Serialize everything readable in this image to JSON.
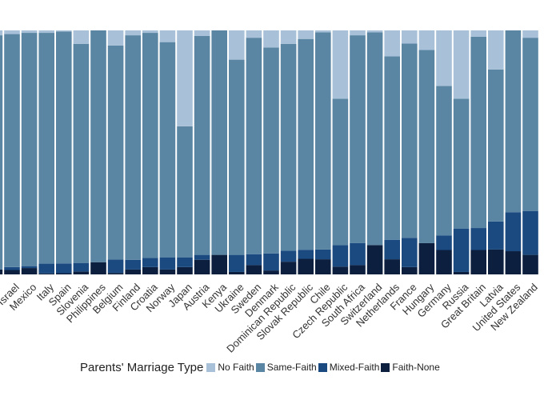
{
  "chart_data": {
    "type": "bar",
    "stacked": true,
    "normalized": true,
    "ylim": [
      0,
      1
    ],
    "grid": false,
    "categories": [
      "Israel",
      "Mexico",
      "Italy",
      "Spain",
      "Slovenia",
      "Philippines",
      "Belgium",
      "Finland",
      "Croatia",
      "Norway",
      "Japan",
      "Austria",
      "Kenya",
      "Ukraine",
      "Sweden",
      "Denmark",
      "Dominican Republic",
      "Slovak Republic",
      "Chile",
      "Czech Republic",
      "South Africa",
      "Switzerland",
      "Netherlands",
      "France",
      "Hungary",
      "Germany",
      "Russia",
      "Great Britain",
      "Latvia",
      "United States",
      "New Zealand"
    ],
    "series": [
      {
        "name": "Faith-None",
        "color": "#0c1f3f",
        "values": [
          0.018,
          0.026,
          0.004,
          0.005,
          0.012,
          0.05,
          0.006,
          0.02,
          0.03,
          0.02,
          0.03,
          0.06,
          0.08,
          0.01,
          0.038,
          0.016,
          0.052,
          0.064,
          0.062,
          0.032,
          0.038,
          0.12,
          0.062,
          0.03,
          0.128,
          0.1,
          0.01,
          0.1,
          0.102,
          0.095,
          0.08
        ]
      },
      {
        "name": "Mixed-Faith",
        "color": "#1a4a80",
        "values": [
          0.012,
          0.008,
          0.04,
          0.04,
          0.035,
          0.0,
          0.055,
          0.04,
          0.038,
          0.05,
          0.04,
          0.02,
          0.0,
          0.07,
          0.045,
          0.07,
          0.045,
          0.037,
          0.04,
          0.088,
          0.09,
          0.0,
          0.08,
          0.12,
          0.0,
          0.06,
          0.178,
          0.09,
          0.115,
          0.16,
          0.18
        ]
      },
      {
        "name": "Same-Faith",
        "color": "#5a86a4",
        "values": [
          0.955,
          0.956,
          0.946,
          0.95,
          0.898,
          0.95,
          0.877,
          0.92,
          0.922,
          0.882,
          0.537,
          0.897,
          0.92,
          0.8,
          0.887,
          0.844,
          0.848,
          0.864,
          0.89,
          0.6,
          0.852,
          0.872,
          0.752,
          0.796,
          0.792,
          0.612,
          0.532,
          0.784,
          0.623,
          0.745,
          0.71
        ]
      },
      {
        "name": "No Faith",
        "color": "#a8c1d8",
        "values": [
          0.015,
          0.01,
          0.01,
          0.005,
          0.055,
          0.0,
          0.062,
          0.02,
          0.01,
          0.048,
          0.393,
          0.023,
          0.0,
          0.12,
          0.03,
          0.07,
          0.055,
          0.035,
          0.008,
          0.28,
          0.02,
          0.008,
          0.106,
          0.054,
          0.08,
          0.228,
          0.28,
          0.026,
          0.16,
          0.0,
          0.03
        ]
      }
    ],
    "xlabel": "",
    "ylabel": "",
    "legend": {
      "title": "Parents' Marriage Type",
      "entries": [
        "No Faith",
        "Same-Faith",
        "Mixed-Faith",
        "Faith-None"
      ],
      "position": "bottom"
    }
  }
}
